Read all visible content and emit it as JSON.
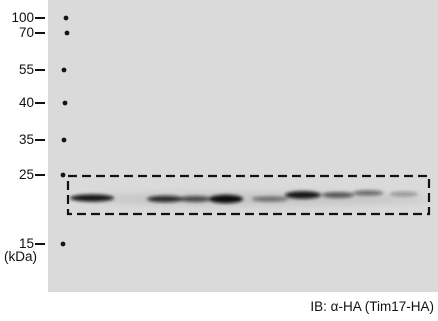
{
  "marker_ladder": {
    "values": [
      "100",
      "70",
      "55",
      "40",
      "35",
      "25",
      "15"
    ],
    "unit": "(kDa)"
  },
  "caption": "IB: α-HA (Tim17-HA)",
  "colors": {
    "membrane": "#dadada",
    "band": "#111111",
    "box": "#111111"
  }
}
